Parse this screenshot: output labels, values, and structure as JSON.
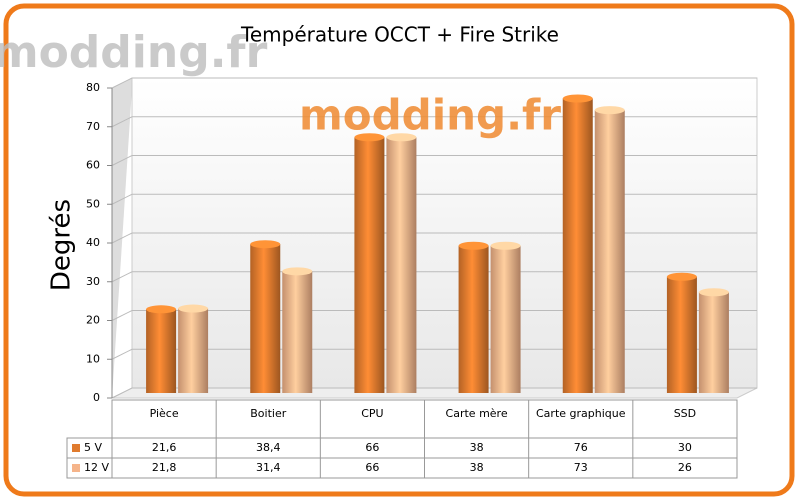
{
  "chart_data": {
    "type": "bar",
    "title": "Température OCCT + Fire Strike",
    "watermark": "modding.fr",
    "y_label": "Degrés",
    "categories": [
      "Pièce",
      "Boitier",
      "CPU",
      "Carte mère",
      "Carte graphique",
      "SSD"
    ],
    "series": [
      {
        "name": "5 V",
        "color": "#e07b2e",
        "values": [
          21.6,
          38.4,
          66,
          38,
          76,
          30
        ],
        "value_labels": [
          "21,6",
          "38,4",
          "66",
          "38",
          "76",
          "30"
        ]
      },
      {
        "name": "12 V",
        "color": "#f5b48a",
        "values": [
          21.8,
          31.4,
          66,
          38,
          73,
          26
        ],
        "value_labels": [
          "21,8",
          "31,4",
          "66",
          "38",
          "73",
          "26"
        ]
      }
    ],
    "ylim": [
      0,
      80
    ],
    "yticks": [
      0,
      10,
      20,
      30,
      40,
      50,
      60,
      70,
      80
    ],
    "grid": true
  }
}
